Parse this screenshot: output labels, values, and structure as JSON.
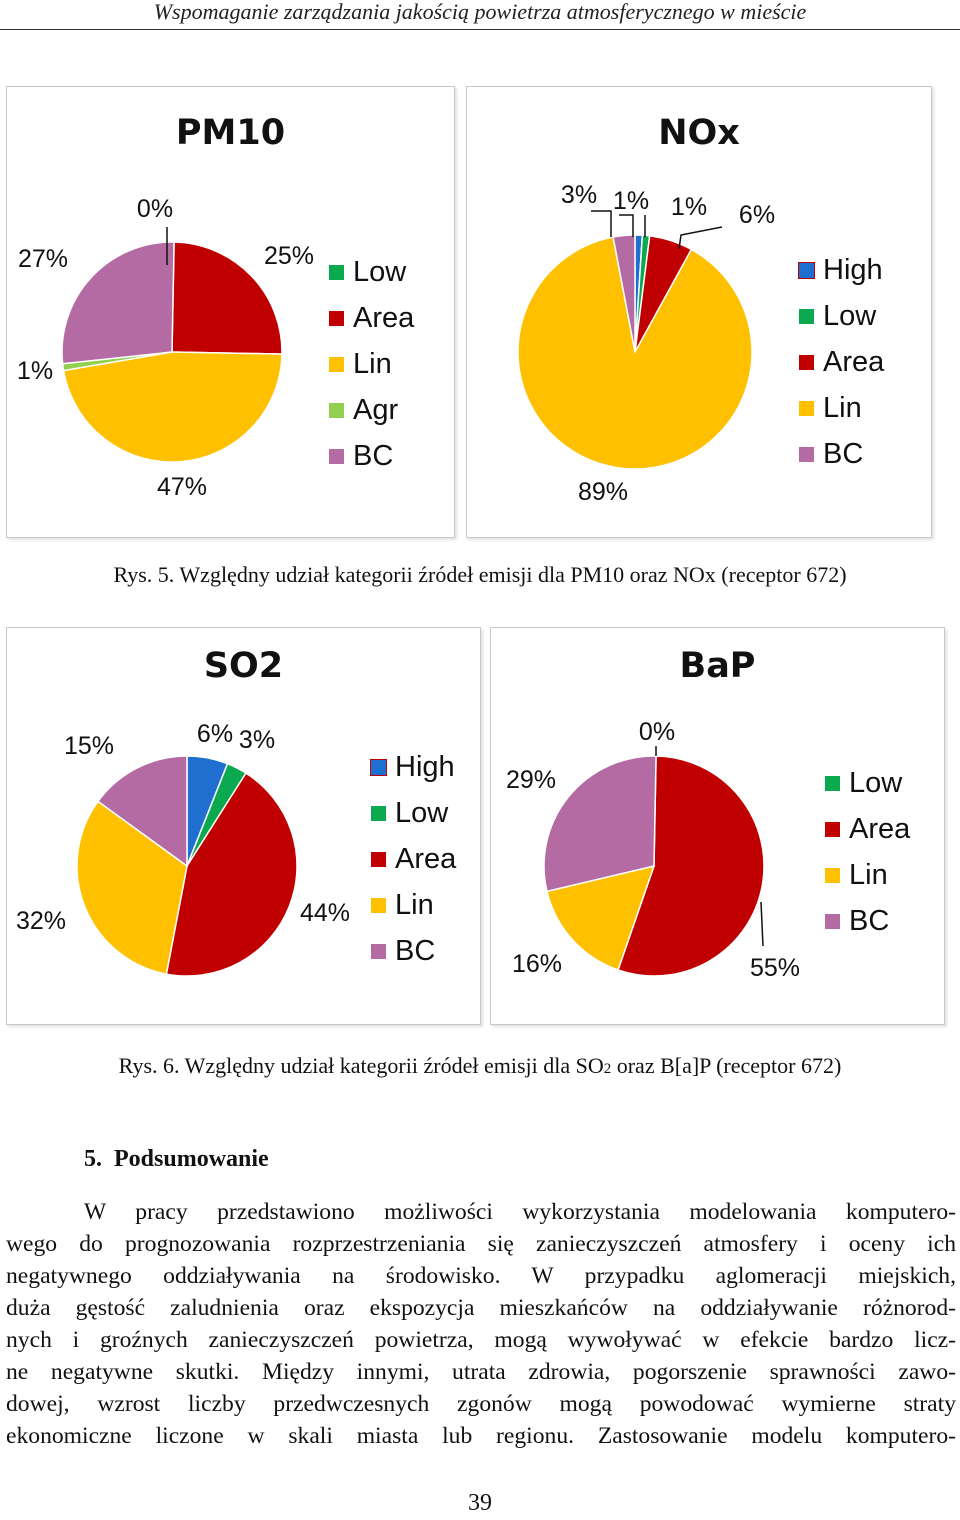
{
  "running_header": "Wspomaganie zarządzania jakością powietrza atmosferycznego w mieście",
  "colors": {
    "High": "#1f6fd0",
    "Low": "#0aa84f",
    "Area": "#c00000",
    "Lin": "#ffc000",
    "Agr": "#92d050",
    "BC": "#b46ba4"
  },
  "chart_data": [
    {
      "type": "pie",
      "title": "PM10",
      "categories": [
        "Low",
        "Area",
        "Lin",
        "Agr",
        "BC"
      ],
      "values": [
        0,
        25,
        47,
        1,
        27
      ],
      "labels": [
        "0%",
        "25%",
        "47%",
        "1%",
        "27%"
      ],
      "legend": [
        "Low",
        "Area",
        "Lin",
        "Agr",
        "BC"
      ],
      "legend_position": "right"
    },
    {
      "type": "pie",
      "title": "NOx",
      "categories": [
        "High",
        "Low",
        "Area",
        "Lin",
        "BC"
      ],
      "values": [
        1,
        1,
        6,
        89,
        3
      ],
      "labels": [
        "1%",
        "1%",
        "6%",
        "89%",
        "3%"
      ],
      "legend": [
        "High",
        "Low",
        "Area",
        "Lin",
        "BC"
      ],
      "legend_position": "right"
    },
    {
      "type": "pie",
      "title": "SO2",
      "categories": [
        "High",
        "Low",
        "Area",
        "Lin",
        "BC"
      ],
      "values": [
        6,
        3,
        44,
        32,
        15
      ],
      "labels": [
        "6%",
        "3%",
        "44%",
        "32%",
        "15%"
      ],
      "legend": [
        "High",
        "Low",
        "Area",
        "Lin",
        "BC"
      ],
      "legend_position": "right"
    },
    {
      "type": "pie",
      "title": "BaP",
      "categories": [
        "Low",
        "Area",
        "Lin",
        "BC"
      ],
      "values": [
        0,
        55,
        16,
        29
      ],
      "labels": [
        "0%",
        "55%",
        "16%",
        "29%"
      ],
      "legend": [
        "Low",
        "Area",
        "Lin",
        "BC"
      ],
      "legend_position": "right"
    }
  ],
  "captions": {
    "fig5": "Rys. 5. Względny udział kategorii źródeł emisji dla PM10 oraz NOx (receptor 672)",
    "fig6_before": "Rys. 6. Względny udział kategorii źródeł emisji dla SO",
    "fig6_sub": "2",
    "fig6_after": " oraz B[a]P (receptor 672)"
  },
  "section": {
    "number": "5.",
    "title": "Podsumowanie"
  },
  "body_lines": [
    "W pracy przedstawiono możliwości wykorzystania modelowania komputero-",
    "wego do prognozowania rozprzestrzeniania się zanieczyszczeń atmosfery i oceny ich",
    "negatywnego oddziaływania na środowisko. W przypadku aglomeracji miejskich,",
    "duża gęstość zaludnienia oraz ekspozycja mieszkańców na oddziaływanie różnorod-",
    "nych i groźnych zanieczyszczeń powietrza, mogą wywoływać w efekcie bardzo licz-",
    "ne negatywne skutki. Między innymi, utrata zdrowia, pogorszenie sprawności zawo-",
    "dowej, wzrost liczby przedwczesnych zgonów mogą powodować wymierne straty",
    "ekonomiczne liczone w skali miasta lub regionu. Zastosowanie modelu komputero-"
  ],
  "page_number": "39"
}
